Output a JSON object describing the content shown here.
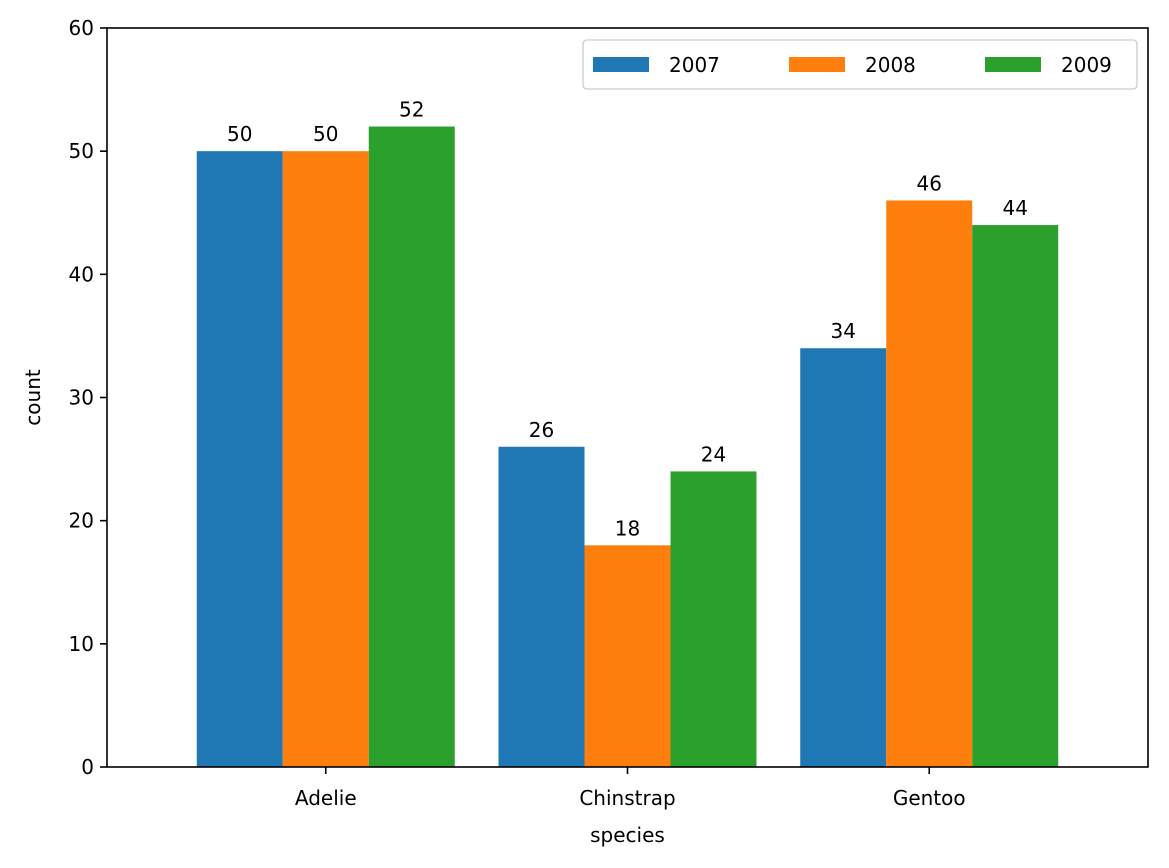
{
  "chart_data": {
    "type": "bar",
    "title": "",
    "xlabel": "species",
    "ylabel": "count",
    "categories": [
      "Adelie",
      "Chinstrap",
      "Gentoo"
    ],
    "series": [
      {
        "name": "2007",
        "color": "#1f77b4",
        "values": [
          50,
          26,
          34
        ]
      },
      {
        "name": "2008",
        "color": "#ff7f0e",
        "values": [
          50,
          18,
          46
        ]
      },
      {
        "name": "2009",
        "color": "#2ca02c",
        "values": [
          52,
          24,
          44
        ]
      }
    ],
    "ylim": [
      0,
      60
    ],
    "yticks": [
      0,
      10,
      20,
      30,
      40,
      50,
      60
    ],
    "grid": false,
    "legend_position": "top-right",
    "legend_columns": 3
  }
}
